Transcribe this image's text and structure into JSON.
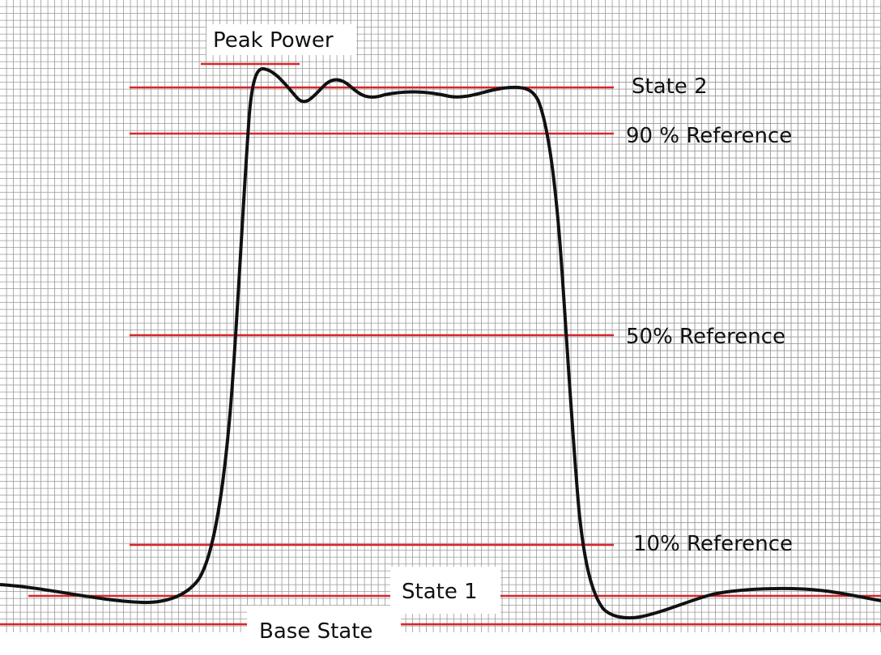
{
  "labels": {
    "peak_power": "Peak Power",
    "state_2": "State 2",
    "ref_90": "90 % Reference",
    "ref_50": "50% Reference",
    "ref_10": "10% Reference",
    "state_1": "State 1",
    "base_state": "Base State"
  },
  "colors": {
    "reference_line": "#d9262a",
    "waveform": "#111111",
    "grid": "#9a9a9a"
  }
}
